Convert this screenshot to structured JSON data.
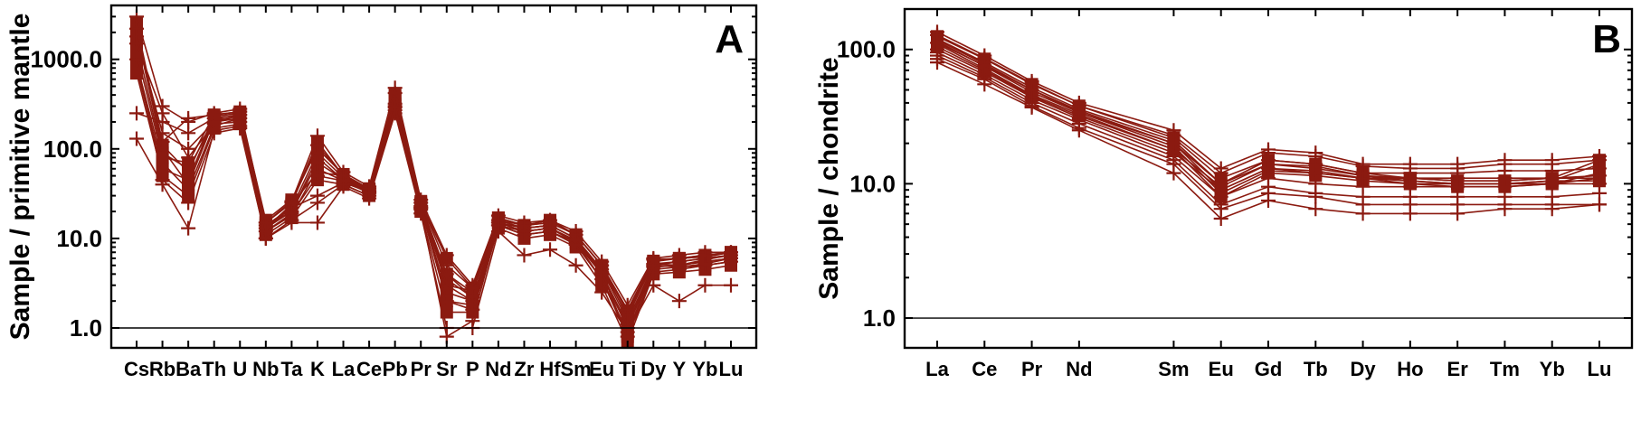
{
  "colors": {
    "series": "#8b1a10",
    "axes": "#000000",
    "background": "#ffffff"
  },
  "chart_data": [
    {
      "type": "line",
      "panel_label": "A",
      "title": "",
      "xlabel": "",
      "ylabel": "Sample / primitive mantle",
      "yscale": "log",
      "ylim": [
        0.6,
        4000
      ],
      "yticks": [
        1,
        10,
        100,
        1000
      ],
      "ytick_labels": [
        "1.0",
        "10.0",
        "100.0",
        "1000.0"
      ],
      "reference_line": 1,
      "grid": false,
      "legend": "none",
      "categories": [
        "Cs",
        "Rb",
        "Ba",
        "Th",
        "U",
        "Nb",
        "Ta",
        "K",
        "La",
        "Ce",
        "Pb",
        "Pr",
        "Sr",
        "P",
        "Nd",
        "Zr",
        "Hf",
        "Sm",
        "Eu",
        "Ti",
        "Dy",
        "Y",
        "Yb",
        "Lu"
      ],
      "series": [
        {
          "marker": "square",
          "values": [
            2500,
            110,
            55,
            230,
            250,
            15,
            25,
            120,
            50,
            35,
            400,
            25,
            6,
            2.8,
            17,
            14,
            15,
            11,
            5,
            1.5,
            5.5,
            6,
            6.5,
            7
          ]
        },
        {
          "marker": "square",
          "values": [
            2000,
            100,
            40,
            210,
            230,
            13,
            22,
            90,
            48,
            34,
            350,
            24,
            4,
            2.5,
            16,
            13,
            14,
            10,
            4.5,
            1.2,
            5,
            5.5,
            6,
            6.5
          ]
        },
        {
          "marker": "square",
          "values": [
            1500,
            90,
            60,
            200,
            240,
            14,
            20,
            80,
            45,
            33,
            300,
            23,
            3.5,
            2.2,
            15,
            12,
            13,
            9.5,
            4,
            1.0,
            4.8,
            5,
            5.5,
            6
          ]
        },
        {
          "marker": "square",
          "values": [
            900,
            70,
            35,
            180,
            220,
            12,
            18,
            60,
            44,
            32,
            280,
            22,
            2.5,
            2.0,
            14,
            11,
            12,
            9,
            3.5,
            0.9,
            4.5,
            4.8,
            5,
            5.5
          ]
        },
        {
          "marker": "square",
          "values": [
            800,
            60,
            45,
            220,
            210,
            13,
            24,
            55,
            50,
            35,
            320,
            24,
            2,
            1.8,
            15,
            13,
            14,
            10,
            4.2,
            0.8,
            5.2,
            5,
            5.8,
            6.5
          ]
        },
        {
          "marker": "square",
          "values": [
            1200,
            80,
            70,
            240,
            260,
            16,
            27,
            100,
            52,
            36,
            380,
            26,
            3,
            2.6,
            17,
            14,
            16,
            11,
            5,
            1.3,
            5.6,
            6,
            6.2,
            7
          ]
        },
        {
          "marker": "square",
          "values": [
            700,
            50,
            30,
            170,
            190,
            11,
            17,
            45,
            40,
            30,
            260,
            20,
            1.5,
            1.5,
            13,
            10,
            11,
            8,
            3,
            0.7,
            4,
            4.2,
            4.5,
            5
          ]
        },
        {
          "marker": "plus",
          "values": [
            3000,
            300,
            200,
            250,
            280,
            15,
            26,
            140,
            55,
            38,
            480,
            27,
            6.5,
            3.0,
            18,
            15,
            16,
            12,
            5.5,
            1.8,
            6,
            6.5,
            7,
            7
          ]
        },
        {
          "marker": "plus",
          "values": [
            250,
            200,
            150,
            220,
            240,
            14,
            22,
            30,
            42,
            33,
            320,
            22,
            4,
            2.2,
            15,
            13,
            14,
            10,
            4.5,
            1.4,
            5.2,
            5.5,
            6,
            6.5
          ]
        },
        {
          "marker": "plus",
          "values": [
            130,
            40,
            13,
            160,
            180,
            10,
            15,
            15,
            38,
            28,
            250,
            19,
            1,
            1.0,
            12,
            6.5,
            7.5,
            5,
            2.5,
            0.9,
            3,
            2,
            3,
            3
          ]
        },
        {
          "marker": "plus",
          "values": [
            1800,
            150,
            100,
            200,
            220,
            13,
            20,
            70,
            46,
            34,
            300,
            23,
            3,
            2.0,
            15,
            12,
            13,
            9,
            4,
            1.1,
            4.8,
            5,
            5.5,
            6
          ]
        },
        {
          "marker": "plus",
          "values": [
            1000,
            45,
            25,
            150,
            170,
            10,
            16,
            25,
            40,
            30,
            270,
            21,
            0.8,
            1.2,
            14,
            11,
            12,
            8.5,
            3.5,
            0.8,
            4.2,
            4.5,
            5,
            5.5
          ]
        },
        {
          "marker": "plus",
          "values": [
            2200,
            120,
            220,
            240,
            260,
            15,
            25,
            110,
            50,
            36,
            420,
            25,
            5,
            2.8,
            16,
            14,
            15,
            11,
            5,
            1.6,
            5.8,
            6,
            6.5,
            7
          ]
        },
        {
          "marker": "plus",
          "values": [
            1500,
            250,
            80,
            190,
            200,
            12,
            19,
            50,
            44,
            32,
            290,
            22,
            2,
            1.6,
            14,
            12,
            13,
            9.5,
            4.2,
            1.0,
            5,
            4.8,
            5.2,
            6
          ]
        }
      ]
    },
    {
      "type": "line",
      "panel_label": "B",
      "title": "",
      "xlabel": "",
      "ylabel": "Sample / chondrite",
      "yscale": "log",
      "ylim": [
        0.6,
        200
      ],
      "yticks": [
        1,
        10,
        100
      ],
      "ytick_labels": [
        "1.0",
        "10.0",
        "100.0"
      ],
      "reference_line": 1,
      "grid": false,
      "legend": "none",
      "categories": [
        "La",
        "Ce",
        "Pr",
        "Nd",
        "Sm",
        "Eu",
        "Gd",
        "Tb",
        "Dy",
        "Ho",
        "Er",
        "Tm",
        "Yb",
        "Lu"
      ],
      "x_positions": [
        1,
        2,
        3,
        4,
        6,
        7,
        8,
        9,
        10,
        11,
        12,
        13,
        14,
        15
      ],
      "series": [
        {
          "marker": "square",
          "values": [
            125,
            85,
            55,
            38,
            22,
            11,
            15,
            14,
            12,
            11,
            10.5,
            10.5,
            11,
            15
          ]
        },
        {
          "marker": "square",
          "values": [
            120,
            80,
            52,
            36,
            21,
            10,
            14,
            13.5,
            11.5,
            10.5,
            10,
            10,
            10.5,
            14
          ]
        },
        {
          "marker": "square",
          "values": [
            118,
            78,
            50,
            35,
            20,
            9,
            13,
            12.5,
            11,
            10,
            9.5,
            9.5,
            10,
            12
          ]
        },
        {
          "marker": "square",
          "values": [
            115,
            75,
            48,
            34,
            19,
            8.5,
            12.5,
            12,
            11,
            10.5,
            10,
            10,
            10,
            11
          ]
        },
        {
          "marker": "square",
          "values": [
            110,
            72,
            46,
            33,
            18,
            8,
            12,
            11.5,
            10.5,
            10,
            10,
            10,
            10.5,
            10.5
          ]
        },
        {
          "marker": "square",
          "values": [
            105,
            70,
            45,
            32,
            18,
            9.5,
            14,
            13,
            11.5,
            11,
            10.5,
            10.5,
            11,
            11
          ]
        },
        {
          "marker": "plus",
          "values": [
            135,
            90,
            58,
            40,
            25,
            13,
            18,
            17,
            14,
            14,
            14,
            15,
            15,
            16
          ]
        },
        {
          "marker": "plus",
          "values": [
            128,
            86,
            56,
            38,
            23,
            12,
            17,
            16,
            13.5,
            13,
            13,
            14,
            14,
            15
          ]
        },
        {
          "marker": "plus",
          "values": [
            100,
            68,
            44,
            31,
            17,
            9,
            13,
            12,
            11,
            11,
            11,
            11,
            11,
            11.5
          ]
        },
        {
          "marker": "plus",
          "values": [
            95,
            65,
            42,
            30,
            16,
            8,
            11,
            10,
            9.5,
            9.5,
            9.5,
            9.5,
            10,
            10
          ]
        },
        {
          "marker": "plus",
          "values": [
            90,
            62,
            40,
            28,
            15,
            7,
            9.5,
            8.5,
            8,
            8,
            8,
            8,
            8,
            8.5
          ]
        },
        {
          "marker": "plus",
          "values": [
            85,
            60,
            38,
            26,
            14,
            6.5,
            8.5,
            8,
            7,
            7,
            7,
            7,
            7,
            7
          ]
        },
        {
          "marker": "plus",
          "values": [
            80,
            55,
            37,
            25,
            12,
            5.5,
            7.5,
            6.5,
            6,
            6,
            6,
            6.5,
            6.5,
            7
          ]
        },
        {
          "marker": "plus",
          "values": [
            112,
            76,
            50,
            34,
            20,
            10,
            15,
            14,
            12,
            12,
            12,
            12.5,
            12.5,
            13
          ]
        }
      ]
    }
  ]
}
